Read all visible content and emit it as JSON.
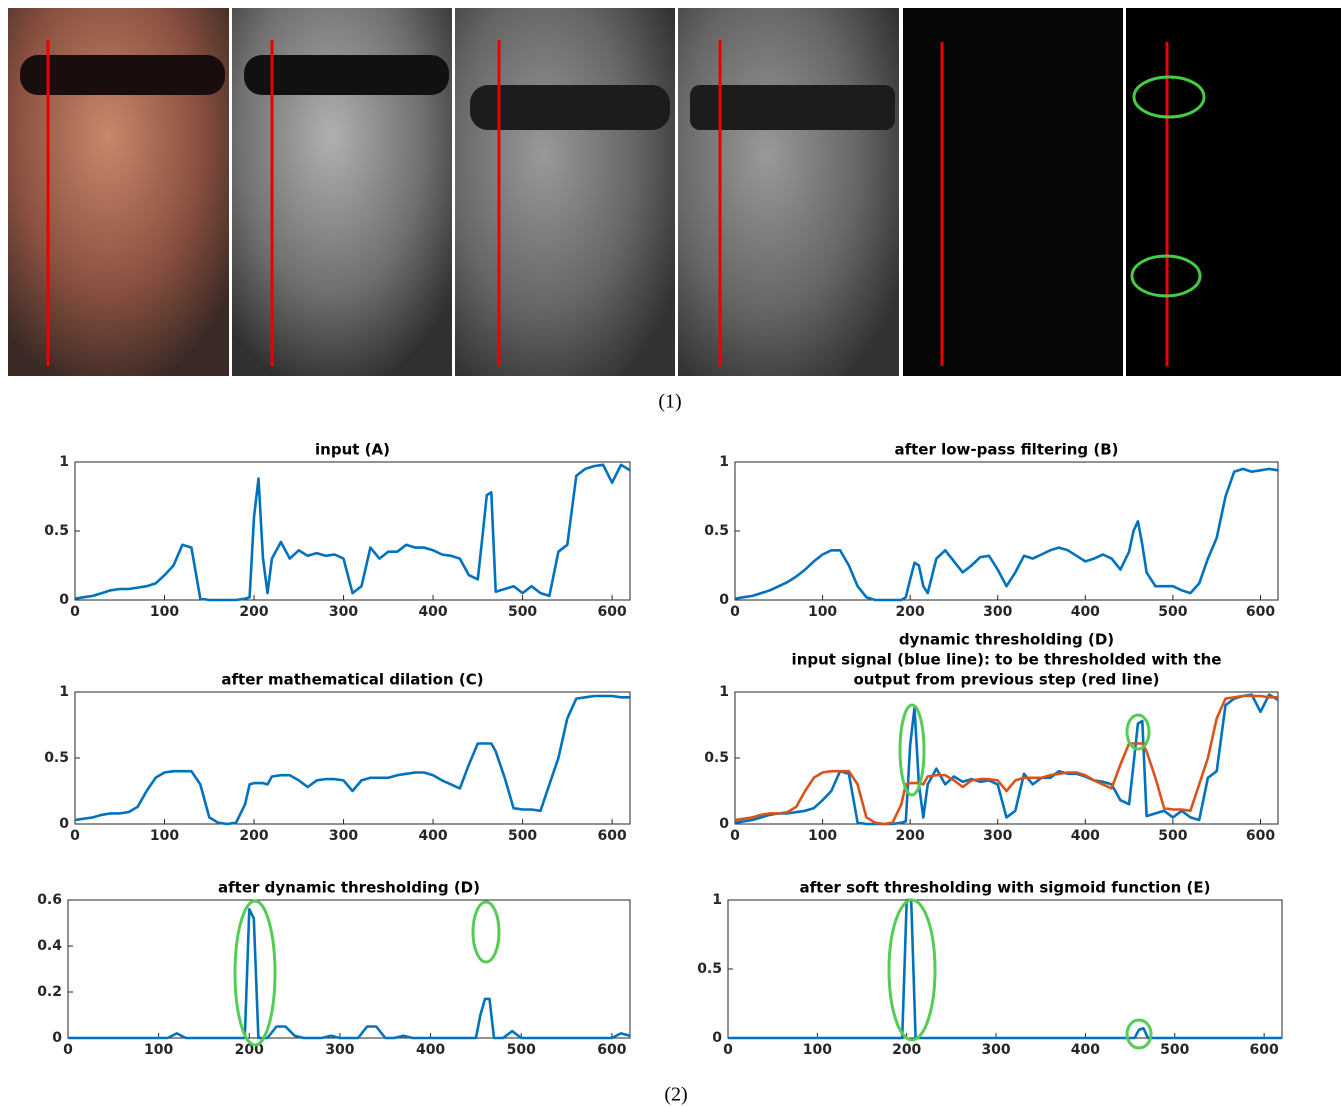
{
  "figure_labels": [
    "(1)",
    "(2)"
  ],
  "chart_data": [
    {
      "type": "line",
      "title": "input (A)",
      "x": [
        0,
        10,
        20,
        30,
        40,
        50,
        60,
        70,
        80,
        90,
        100,
        110,
        120,
        130,
        140,
        150,
        160,
        170,
        180,
        190,
        195,
        200,
        205,
        210,
        215,
        220,
        230,
        240,
        250,
        260,
        270,
        280,
        290,
        300,
        310,
        320,
        330,
        340,
        350,
        360,
        370,
        380,
        390,
        400,
        410,
        420,
        430,
        440,
        450,
        455,
        460,
        465,
        470,
        480,
        490,
        500,
        510,
        520,
        530,
        540,
        550,
        560,
        570,
        580,
        590,
        600,
        610,
        620
      ],
      "series": [
        {
          "color": "#0072bd",
          "values": [
            0.01,
            0.02,
            0.03,
            0.05,
            0.07,
            0.08,
            0.08,
            0.09,
            0.1,
            0.12,
            0.18,
            0.25,
            0.4,
            0.38,
            0.01,
            0,
            0,
            0,
            0,
            0.01,
            0.02,
            0.6,
            0.88,
            0.3,
            0.05,
            0.3,
            0.42,
            0.3,
            0.36,
            0.32,
            0.34,
            0.32,
            0.33,
            0.3,
            0.05,
            0.1,
            0.38,
            0.3,
            0.35,
            0.35,
            0.4,
            0.38,
            0.38,
            0.36,
            0.33,
            0.32,
            0.3,
            0.18,
            0.15,
            0.45,
            0.76,
            0.78,
            0.06,
            0.08,
            0.1,
            0.05,
            0.1,
            0.05,
            0.03,
            0.35,
            0.4,
            0.9,
            0.95,
            0.97,
            0.98,
            0.85,
            0.98,
            0.94
          ]
        }
      ],
      "xlim": [
        0,
        620
      ],
      "xticks": [
        0,
        100,
        200,
        300,
        400,
        500,
        600
      ],
      "ylim": [
        0,
        1
      ],
      "yticks": [
        0,
        0.5,
        1
      ]
    },
    {
      "type": "line",
      "title": "after low-pass filtering (B)",
      "x": [
        0,
        10,
        20,
        30,
        40,
        50,
        60,
        70,
        80,
        90,
        100,
        110,
        120,
        130,
        140,
        150,
        160,
        170,
        180,
        190,
        195,
        200,
        205,
        210,
        215,
        220,
        230,
        240,
        250,
        260,
        270,
        280,
        290,
        300,
        310,
        320,
        330,
        340,
        350,
        360,
        370,
        380,
        390,
        400,
        410,
        420,
        430,
        440,
        450,
        455,
        460,
        465,
        470,
        480,
        490,
        500,
        510,
        520,
        530,
        540,
        550,
        560,
        570,
        580,
        590,
        600,
        610,
        620
      ],
      "series": [
        {
          "color": "#0072bd",
          "values": [
            0.01,
            0.02,
            0.03,
            0.05,
            0.07,
            0.1,
            0.13,
            0.17,
            0.22,
            0.28,
            0.33,
            0.36,
            0.36,
            0.25,
            0.1,
            0.02,
            0,
            0,
            0,
            0,
            0.02,
            0.15,
            0.27,
            0.25,
            0.1,
            0.05,
            0.3,
            0.36,
            0.28,
            0.2,
            0.25,
            0.31,
            0.32,
            0.22,
            0.1,
            0.2,
            0.32,
            0.3,
            0.33,
            0.36,
            0.38,
            0.36,
            0.32,
            0.28,
            0.3,
            0.33,
            0.3,
            0.22,
            0.35,
            0.5,
            0.57,
            0.4,
            0.2,
            0.1,
            0.1,
            0.1,
            0.07,
            0.05,
            0.12,
            0.3,
            0.45,
            0.75,
            0.93,
            0.95,
            0.93,
            0.94,
            0.95,
            0.94
          ]
        }
      ],
      "xlim": [
        0,
        620
      ],
      "xticks": [
        0,
        100,
        200,
        300,
        400,
        500,
        600
      ],
      "ylim": [
        0,
        1
      ],
      "yticks": [
        0,
        0.5,
        1
      ]
    },
    {
      "type": "line",
      "title": "after mathematical dilation (C)",
      "x": [
        0,
        10,
        20,
        30,
        40,
        50,
        60,
        70,
        80,
        90,
        100,
        110,
        120,
        130,
        140,
        150,
        160,
        170,
        180,
        190,
        195,
        200,
        205,
        210,
        215,
        220,
        230,
        240,
        250,
        260,
        270,
        280,
        290,
        300,
        310,
        320,
        330,
        340,
        350,
        360,
        370,
        380,
        390,
        400,
        410,
        420,
        430,
        440,
        450,
        455,
        460,
        465,
        470,
        480,
        490,
        500,
        510,
        520,
        530,
        540,
        550,
        560,
        570,
        580,
        590,
        600,
        610,
        620
      ],
      "series": [
        {
          "color": "#0072bd",
          "values": [
            0.03,
            0.04,
            0.05,
            0.07,
            0.08,
            0.08,
            0.09,
            0.13,
            0.25,
            0.35,
            0.39,
            0.4,
            0.4,
            0.4,
            0.3,
            0.05,
            0.01,
            0,
            0.01,
            0.15,
            0.3,
            0.31,
            0.31,
            0.31,
            0.3,
            0.36,
            0.37,
            0.37,
            0.33,
            0.28,
            0.33,
            0.34,
            0.34,
            0.33,
            0.25,
            0.33,
            0.35,
            0.35,
            0.35,
            0.37,
            0.38,
            0.39,
            0.39,
            0.37,
            0.33,
            0.3,
            0.27,
            0.45,
            0.61,
            0.61,
            0.61,
            0.61,
            0.55,
            0.35,
            0.12,
            0.11,
            0.11,
            0.1,
            0.3,
            0.5,
            0.8,
            0.95,
            0.96,
            0.97,
            0.97,
            0.97,
            0.96,
            0.96
          ]
        }
      ],
      "xlim": [
        0,
        620
      ],
      "xticks": [
        0,
        100,
        200,
        300,
        400,
        500,
        600
      ],
      "ylim": [
        0,
        1
      ],
      "yticks": [
        0,
        0.5,
        1
      ]
    },
    {
      "type": "line",
      "title": [
        "dynamic thresholding (D)",
        "input signal (blue line): to be thresholded with the",
        "output from previous step (red line)"
      ],
      "x": [
        0,
        10,
        20,
        30,
        40,
        50,
        60,
        70,
        80,
        90,
        100,
        110,
        120,
        130,
        140,
        150,
        160,
        170,
        180,
        190,
        195,
        200,
        205,
        210,
        215,
        220,
        230,
        240,
        250,
        260,
        270,
        280,
        290,
        300,
        310,
        320,
        330,
        340,
        350,
        360,
        370,
        380,
        390,
        400,
        410,
        420,
        430,
        440,
        450,
        455,
        460,
        465,
        470,
        480,
        490,
        500,
        510,
        520,
        530,
        540,
        550,
        560,
        570,
        580,
        590,
        600,
        610,
        620
      ],
      "series": [
        {
          "color": "#0072bd",
          "values": [
            0.01,
            0.02,
            0.03,
            0.05,
            0.07,
            0.08,
            0.08,
            0.09,
            0.1,
            0.12,
            0.18,
            0.25,
            0.4,
            0.38,
            0.01,
            0,
            0,
            0,
            0,
            0.01,
            0.02,
            0.6,
            0.88,
            0.3,
            0.05,
            0.3,
            0.42,
            0.3,
            0.36,
            0.32,
            0.34,
            0.32,
            0.33,
            0.3,
            0.05,
            0.1,
            0.38,
            0.3,
            0.35,
            0.35,
            0.4,
            0.38,
            0.38,
            0.36,
            0.33,
            0.32,
            0.3,
            0.18,
            0.15,
            0.45,
            0.76,
            0.78,
            0.06,
            0.08,
            0.1,
            0.05,
            0.1,
            0.05,
            0.03,
            0.35,
            0.4,
            0.9,
            0.95,
            0.97,
            0.98,
            0.85,
            0.98,
            0.94
          ]
        },
        {
          "color": "#d95319",
          "values": [
            0.03,
            0.04,
            0.05,
            0.07,
            0.08,
            0.08,
            0.09,
            0.13,
            0.25,
            0.35,
            0.39,
            0.4,
            0.4,
            0.4,
            0.3,
            0.05,
            0.01,
            0,
            0.01,
            0.15,
            0.3,
            0.31,
            0.31,
            0.31,
            0.3,
            0.36,
            0.37,
            0.37,
            0.33,
            0.28,
            0.33,
            0.34,
            0.34,
            0.33,
            0.25,
            0.33,
            0.35,
            0.35,
            0.35,
            0.37,
            0.38,
            0.39,
            0.39,
            0.37,
            0.33,
            0.3,
            0.27,
            0.45,
            0.61,
            0.61,
            0.61,
            0.61,
            0.55,
            0.35,
            0.12,
            0.11,
            0.11,
            0.1,
            0.3,
            0.5,
            0.8,
            0.95,
            0.96,
            0.97,
            0.97,
            0.97,
            0.96,
            0.96
          ]
        }
      ],
      "xlim": [
        0,
        620
      ],
      "xticks": [
        0,
        100,
        200,
        300,
        400,
        500,
        600
      ],
      "ylim": [
        0,
        1
      ],
      "yticks": [
        0,
        0.5,
        1
      ]
    },
    {
      "type": "line",
      "title": "after dynamic thresholding (D)",
      "x": [
        0,
        10,
        20,
        30,
        40,
        50,
        60,
        70,
        80,
        90,
        100,
        110,
        120,
        130,
        140,
        150,
        160,
        170,
        180,
        190,
        195,
        200,
        205,
        210,
        215,
        220,
        230,
        240,
        250,
        260,
        270,
        280,
        290,
        300,
        310,
        320,
        330,
        340,
        350,
        360,
        370,
        380,
        390,
        400,
        410,
        420,
        430,
        440,
        450,
        455,
        460,
        465,
        470,
        480,
        490,
        500,
        510,
        520,
        530,
        540,
        550,
        560,
        570,
        580,
        590,
        600,
        610,
        620
      ],
      "series": [
        {
          "color": "#0072bd",
          "values": [
            0,
            0,
            0,
            0,
            0,
            0,
            0,
            0,
            0,
            0,
            0,
            0,
            0.02,
            0,
            0,
            0,
            0,
            0,
            0,
            0,
            0,
            0.56,
            0.52,
            0,
            0,
            0,
            0.05,
            0.05,
            0.01,
            0,
            0,
            0,
            0.01,
            0,
            0,
            0,
            0.05,
            0.05,
            0,
            0,
            0.01,
            0,
            0,
            0,
            0,
            0,
            0,
            0,
            0,
            0.1,
            0.17,
            0.17,
            0,
            0,
            0.03,
            0,
            0,
            0,
            0,
            0,
            0,
            0,
            0,
            0,
            0,
            0,
            0.02,
            0.01
          ]
        }
      ],
      "xlim": [
        0,
        620
      ],
      "xticks": [
        0,
        100,
        200,
        300,
        400,
        500,
        600
      ],
      "ylim": [
        0,
        0.6
      ],
      "yticks": [
        0,
        0.2,
        0.4,
        0.6
      ]
    },
    {
      "type": "line",
      "title": "after soft thresholding with sigmoid function (E)",
      "x": [
        0,
        10,
        20,
        30,
        40,
        50,
        60,
        70,
        80,
        90,
        100,
        110,
        120,
        130,
        140,
        150,
        160,
        170,
        180,
        190,
        195,
        200,
        205,
        210,
        215,
        220,
        230,
        240,
        250,
        260,
        270,
        280,
        290,
        300,
        310,
        320,
        330,
        340,
        350,
        360,
        370,
        380,
        390,
        400,
        410,
        420,
        430,
        440,
        450,
        455,
        460,
        465,
        470,
        480,
        490,
        500,
        510,
        520,
        530,
        540,
        550,
        560,
        570,
        580,
        590,
        600,
        610,
        620
      ],
      "series": [
        {
          "color": "#0072bd",
          "values": [
            0,
            0,
            0,
            0,
            0,
            0,
            0,
            0,
            0,
            0,
            0,
            0,
            0,
            0,
            0,
            0,
            0,
            0,
            0,
            0,
            0,
            1,
            1,
            0,
            0,
            0,
            0,
            0,
            0,
            0,
            0,
            0,
            0,
            0,
            0,
            0,
            0,
            0,
            0,
            0,
            0,
            0,
            0,
            0,
            0,
            0,
            0,
            0,
            0,
            0,
            0.06,
            0.07,
            0,
            0,
            0,
            0,
            0,
            0,
            0,
            0,
            0,
            0,
            0,
            0,
            0,
            0,
            0,
            0
          ]
        }
      ],
      "xlim": [
        0,
        620
      ],
      "xticks": [
        0,
        100,
        200,
        300,
        400,
        500,
        600
      ],
      "ylim": [
        0,
        1
      ],
      "yticks": [
        0,
        0.5,
        1
      ]
    }
  ]
}
